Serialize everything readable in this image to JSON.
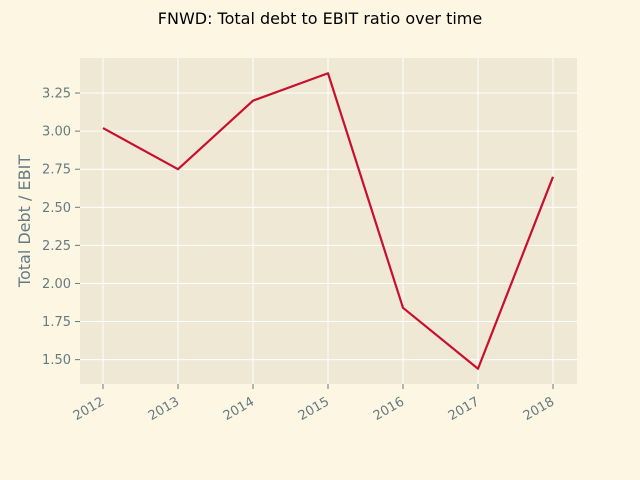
{
  "chart_data": {
    "type": "line",
    "title": "FNWD: Total debt to EBIT ratio over time",
    "xlabel": "",
    "ylabel": "Total Debt / EBIT",
    "categories": [
      "2012",
      "2013",
      "2014",
      "2015",
      "2016",
      "2017",
      "2018"
    ],
    "series": [
      {
        "values": [
          3.02,
          2.75,
          3.2,
          3.38,
          1.84,
          1.44,
          2.7
        ]
      }
    ],
    "yticks": [
      "1.50",
      "1.75",
      "2.00",
      "2.25",
      "2.50",
      "2.75",
      "3.00",
      "3.25"
    ],
    "ylim": [
      1.34,
      3.48
    ],
    "grid": true,
    "legend": "none",
    "colors": {
      "line": "#c8102e",
      "plot_background": "#eee8d5",
      "page_background": "#fdf6e3",
      "grid": "#ffffff",
      "tick_text": "#657b83"
    }
  }
}
